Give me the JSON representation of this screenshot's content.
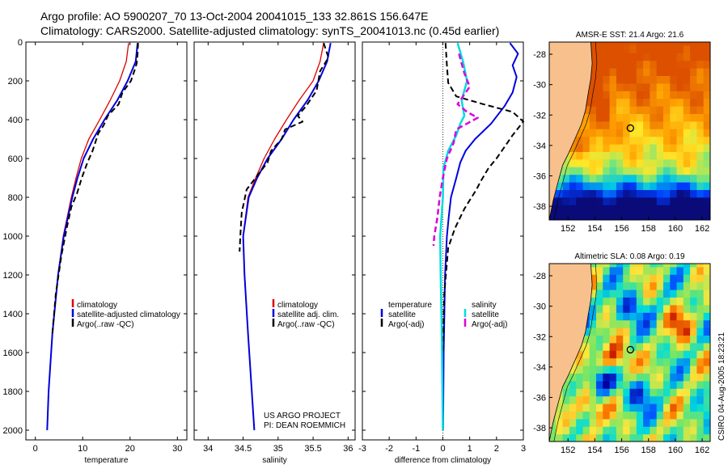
{
  "header": {
    "title_line1": "Argo profile: AO 5900207_70 13-Oct-2004 20041015_133 32.861S 156.647E",
    "title_line2": "Climatology: CARS2000. Satellite-adjusted climatology: synTS_20041013.nc (0.45d earlier)"
  },
  "credit": "CSIRO 04-Aug-2005 18:23:21",
  "colors": {
    "climatology": "#dd0000",
    "satellite": "#0000dd",
    "argo": "#000000",
    "sal_sat": "#00dddd",
    "sal_argo": "#dd00dd",
    "land": "#f7c08c"
  },
  "chart_data": [
    {
      "id": "temperature",
      "type": "line",
      "xlabel": "temperature",
      "xlim": [
        -2,
        32
      ],
      "ylim": [
        0,
        2050
      ],
      "xticks": [
        0,
        10,
        20,
        30
      ],
      "yticks": [
        0,
        200,
        400,
        600,
        800,
        1000,
        1200,
        1400,
        1600,
        1800,
        2000
      ],
      "legend": [
        "climatology",
        "satellite-adjusted climatology",
        "Argo(..raw -QC)"
      ],
      "series": [
        {
          "name": "climatology",
          "style": "climatology",
          "depth": [
            5,
            100,
            200,
            300,
            400,
            500,
            600,
            700,
            800,
            1000,
            1200,
            1500,
            1800,
            2000
          ],
          "values": [
            19.7,
            19.2,
            17.8,
            15.8,
            13.6,
            11.3,
            9.7,
            8.6,
            7.6,
            5.9,
            4.8,
            3.6,
            2.8,
            2.5
          ]
        },
        {
          "name": "satellite-adjusted climatology",
          "style": "satellite",
          "depth": [
            5,
            100,
            200,
            300,
            400,
            500,
            600,
            700,
            800,
            1000,
            1200,
            1500,
            1800,
            2000
          ],
          "values": [
            21.6,
            21.2,
            19.5,
            17.3,
            14.6,
            12.2,
            10.2,
            8.9,
            7.8,
            6.0,
            4.8,
            3.6,
            2.8,
            2.5
          ]
        },
        {
          "name": "Argo(..raw -QC)",
          "style": "argo",
          "depth": [
            5,
            60,
            110,
            150,
            200,
            260,
            320,
            380,
            430,
            470,
            500,
            560,
            620,
            700,
            780,
            850,
            950,
            1100,
            1300,
            1500
          ],
          "values": [
            21.7,
            21.6,
            21.4,
            20.9,
            20.2,
            18.4,
            17.6,
            15.3,
            14.4,
            13.3,
            12.9,
            12.1,
            11.0,
            9.8,
            8.8,
            7.6,
            6.7,
            5.5,
            4.3,
            3.6
          ]
        }
      ]
    },
    {
      "id": "salinity",
      "type": "line",
      "xlabel": "salinity",
      "xlim": [
        33.8,
        36.1
      ],
      "ylim": [
        0,
        2050
      ],
      "xticks": [
        34,
        34.5,
        35,
        35.5,
        36
      ],
      "legend": [
        "climatology",
        "satellite adj. clim.",
        "Argo(..raw -QC)"
      ],
      "annotation": [
        "US ARGO PROJECT",
        "PI: DEAN ROEMMICH"
      ],
      "series": [
        {
          "name": "climatology",
          "style": "climatology",
          "depth": [
            5,
            100,
            200,
            300,
            400,
            500,
            600,
            700,
            800,
            1000,
            1200,
            1500,
            2000
          ],
          "values": [
            35.65,
            35.6,
            35.5,
            35.3,
            35.12,
            34.95,
            34.8,
            34.68,
            34.57,
            34.5,
            34.52,
            34.57,
            34.66
          ]
        },
        {
          "name": "satellite adj. clim.",
          "style": "satellite",
          "depth": [
            5,
            100,
            200,
            300,
            400,
            500,
            600,
            700,
            800,
            1000,
            1200,
            1500,
            2000
          ],
          "values": [
            35.75,
            35.7,
            35.58,
            35.42,
            35.22,
            35.05,
            34.85,
            34.7,
            34.58,
            34.5,
            34.52,
            34.57,
            34.66
          ]
        },
        {
          "name": "Argo(..raw -QC)",
          "style": "argo",
          "depth": [
            5,
            80,
            150,
            250,
            330,
            380,
            410,
            450,
            500,
            560,
            620,
            680,
            760,
            880,
            1000,
            1080
          ],
          "values": [
            35.65,
            35.72,
            35.6,
            35.55,
            35.4,
            35.28,
            35.35,
            35.1,
            35.05,
            34.9,
            34.85,
            34.72,
            34.55,
            34.48,
            34.46,
            34.45
          ]
        }
      ]
    },
    {
      "id": "difference",
      "type": "line",
      "xlabel": "difference from climatology",
      "xlim": [
        -3,
        3
      ],
      "ylim": [
        0,
        2050
      ],
      "xticks": [
        -3,
        -2,
        -1,
        0,
        1,
        2,
        3
      ],
      "legend_left": [
        "temperature",
        "satellite",
        "Argo(-adj)"
      ],
      "legend_right": [
        "salinity",
        "satellite",
        "Argo(-adj)"
      ],
      "series": [
        {
          "name": "temperature satellite",
          "style": "satellite",
          "depth": [
            5,
            60,
            120,
            180,
            260,
            330,
            420,
            500,
            560,
            620,
            700,
            800,
            900,
            1000,
            1200,
            1600,
            2000
          ],
          "values": [
            2.5,
            2.8,
            2.6,
            2.75,
            2.6,
            2.3,
            1.8,
            1.2,
            0.85,
            0.65,
            0.5,
            0.3,
            0.22,
            0.15,
            0.08,
            0.03,
            0.01
          ]
        },
        {
          "name": "temperature Argo(-adj)",
          "style": "argo",
          "depth": [
            5,
            120,
            210,
            280,
            320,
            360,
            410,
            480,
            540,
            600,
            650,
            720,
            760,
            860,
            960,
            1060,
            1300,
            1600
          ],
          "values": [
            0.1,
            0.15,
            0.2,
            0.5,
            1.5,
            2.6,
            3.0,
            2.6,
            2.3,
            2.0,
            1.7,
            1.4,
            1.25,
            0.8,
            0.45,
            0.2,
            0.05,
            0.0
          ]
        },
        {
          "name": "salinity satellite",
          "style": "sal_sat",
          "depth": [
            5,
            100,
            200,
            300,
            380,
            420,
            480,
            560,
            650,
            800,
            1000,
            1200,
            1500,
            2000
          ],
          "values": [
            0.55,
            0.75,
            0.9,
            0.7,
            0.8,
            0.65,
            0.5,
            0.2,
            0.02,
            0.0,
            -0.1,
            -0.08,
            -0.04,
            0.0
          ]
        },
        {
          "name": "salinity Argo(-adj)",
          "style": "sal_argo",
          "depth": [
            60,
            160,
            230,
            320,
            360,
            390,
            420,
            450,
            520,
            600,
            700,
            800,
            900,
            1000,
            1050
          ],
          "values": [
            0.6,
            0.8,
            1.0,
            0.55,
            0.9,
            1.3,
            0.9,
            0.5,
            0.4,
            0.15,
            0.0,
            -0.12,
            -0.2,
            -0.32,
            -0.35
          ]
        }
      ]
    },
    {
      "id": "sst-map",
      "type": "heatmap",
      "title": "AMSR-E SST: 21.4 Argo: 21.6",
      "xlim": [
        150.6,
        162.6
      ],
      "ylim": [
        -38.9,
        -27.2
      ],
      "xticks": [
        152,
        154,
        156,
        158,
        160,
        162
      ],
      "yticks": [
        -28,
        -30,
        -32,
        -34,
        -36,
        -38
      ],
      "marker": {
        "lon": 156.65,
        "lat": -32.86
      }
    },
    {
      "id": "sla-map",
      "type": "heatmap",
      "title": "Altimetric SLA: 0.08 Argo: 0.19",
      "xlim": [
        150.6,
        162.6
      ],
      "ylim": [
        -38.9,
        -27.2
      ],
      "xticks": [
        152,
        154,
        156,
        158,
        160,
        162
      ],
      "yticks": [
        -28,
        -30,
        -32,
        -34,
        -36,
        -38
      ],
      "marker": {
        "lon": 156.65,
        "lat": -32.86
      }
    }
  ]
}
